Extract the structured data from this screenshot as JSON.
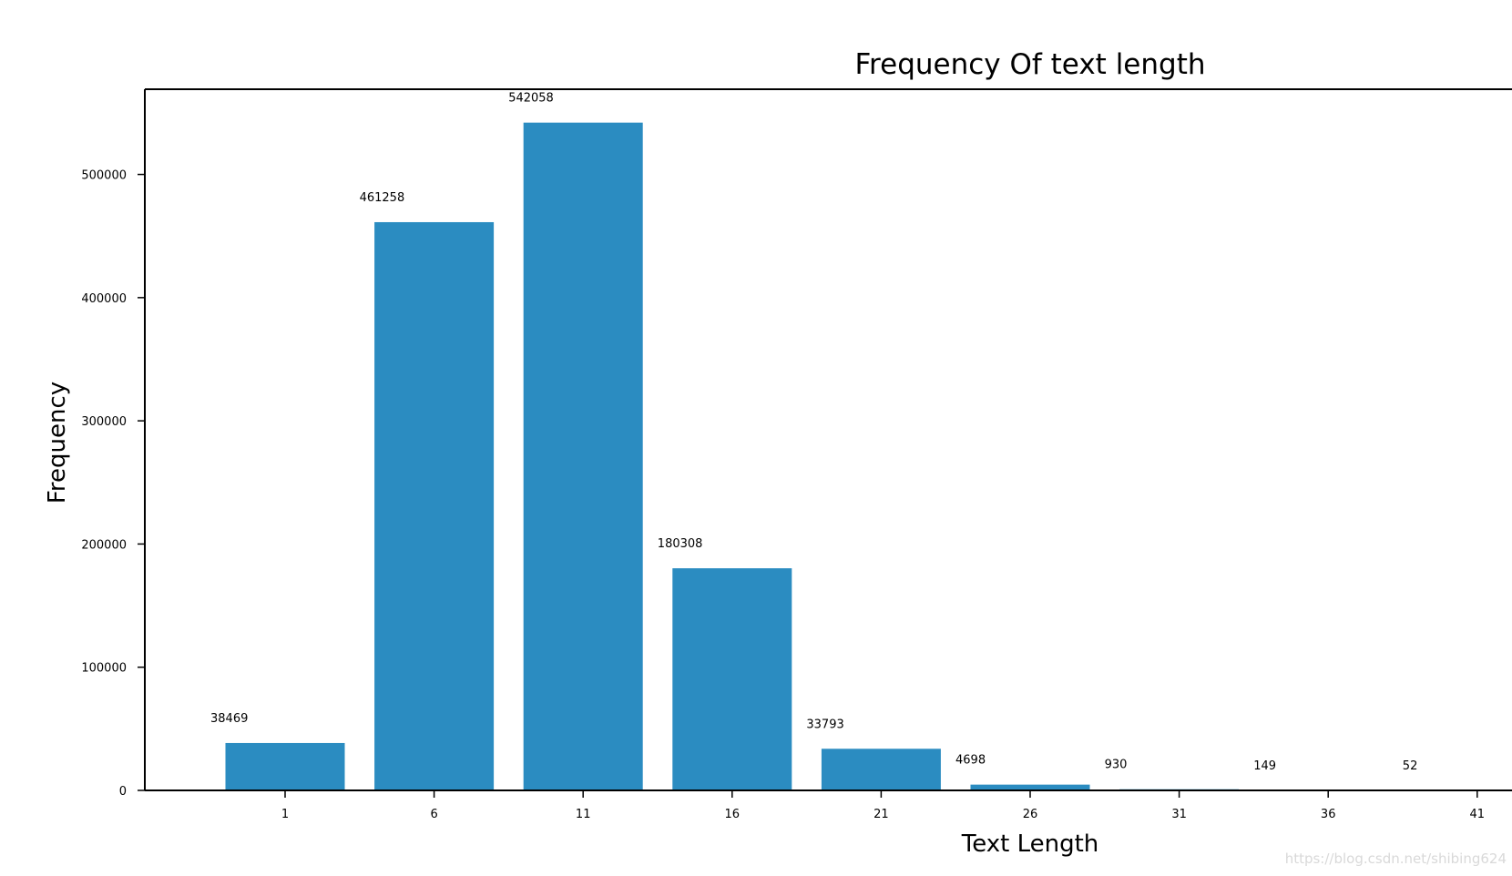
{
  "chart_data": {
    "type": "bar",
    "title": "Frequency Of text length",
    "xlabel": "Text Length",
    "ylabel": "Frequency",
    "categories": [
      "1",
      "6",
      "11",
      "16",
      "21",
      "26",
      "31",
      "36",
      "41"
    ],
    "values": [
      38469,
      461258,
      542058,
      180308,
      33793,
      4698,
      930,
      149,
      52
    ],
    "x_ticks": [
      "1",
      "6",
      "11",
      "16",
      "21",
      "26",
      "31",
      "36",
      "41"
    ],
    "y_ticks": [
      0,
      100000,
      200000,
      300000,
      400000,
      500000
    ],
    "ylim": [
      0,
      569161
    ],
    "grid": false,
    "legend": "none",
    "bar_color": "#2b8cc1"
  },
  "watermark": "https://blog.csdn.net/shibing624"
}
